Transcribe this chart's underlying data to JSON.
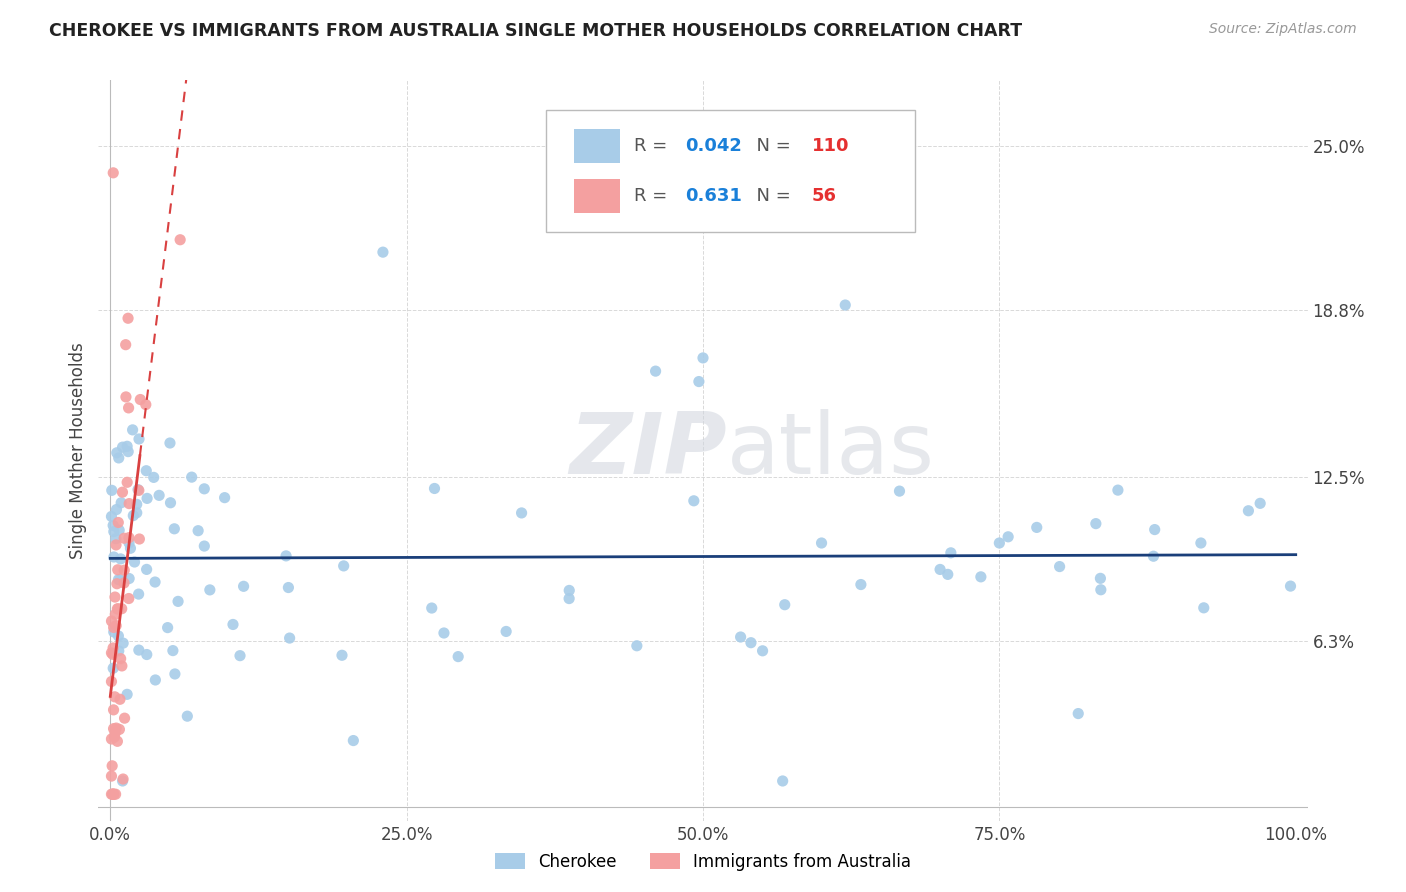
{
  "title": "CHEROKEE VS IMMIGRANTS FROM AUSTRALIA SINGLE MOTHER HOUSEHOLDS CORRELATION CHART",
  "source": "Source: ZipAtlas.com",
  "ylabel": "Single Mother Households",
  "ytick_labels": [
    "6.3%",
    "12.5%",
    "18.8%",
    "25.0%"
  ],
  "ytick_values": [
    0.063,
    0.125,
    0.188,
    0.25
  ],
  "blue_R": "0.042",
  "blue_N": "110",
  "pink_R": "0.631",
  "pink_N": "56",
  "blue_color": "#a8cce8",
  "pink_color": "#f4a0a0",
  "blue_line_color": "#1a3f7a",
  "pink_line_color": "#d94040",
  "watermark_color": "#d8dde8",
  "background_color": "#ffffff",
  "grid_color": "#d0d0d0",
  "legend_R_color": "#1a80d9",
  "legend_N_color": "#e53030"
}
